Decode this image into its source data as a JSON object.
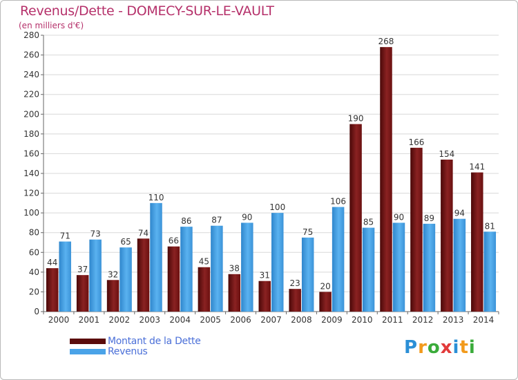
{
  "header": {
    "title": "Revenus/Dette - DOMECY-SUR-LE-VAULT",
    "subtitle": "(en milliers d'€)"
  },
  "legend": {
    "items": [
      {
        "label": "Montant de la Dette",
        "color": "#7a1818"
      },
      {
        "label": "Revenus",
        "color": "#4aa3e8"
      }
    ]
  },
  "logo": {
    "text": "Proxiti",
    "letters": [
      {
        "ch": "P",
        "color": "#2b8fd6"
      },
      {
        "ch": "r",
        "color": "#f29a1c"
      },
      {
        "ch": "o",
        "color": "#3aab3a"
      },
      {
        "ch": "x",
        "color": "#e23a3a"
      },
      {
        "ch": "i",
        "color": "#2b8fd6"
      },
      {
        "ch": "t",
        "color": "#f29a1c"
      },
      {
        "ch": "i",
        "color": "#3aab3a"
      }
    ]
  },
  "chart_data": {
    "type": "bar",
    "categories": [
      "2000",
      "2001",
      "2002",
      "2003",
      "2004",
      "2005",
      "2006",
      "2007",
      "2008",
      "2009",
      "2010",
      "2011",
      "2012",
      "2013",
      "2014"
    ],
    "series": [
      {
        "name": "Montant de la Dette",
        "color": "#7a1818",
        "values": [
          44,
          37,
          32,
          74,
          66,
          45,
          38,
          31,
          23,
          20,
          190,
          268,
          166,
          154,
          141
        ]
      },
      {
        "name": "Revenus",
        "color": "#4aa3e8",
        "values": [
          71,
          73,
          65,
          110,
          86,
          87,
          90,
          100,
          75,
          106,
          85,
          90,
          89,
          94,
          81
        ]
      }
    ],
    "ylim": [
      0,
      280
    ],
    "yticks": [
      0,
      20,
      40,
      60,
      80,
      100,
      120,
      140,
      160,
      180,
      200,
      220,
      240,
      260,
      280
    ],
    "grid": true,
    "legend_position": "bottom-left"
  }
}
